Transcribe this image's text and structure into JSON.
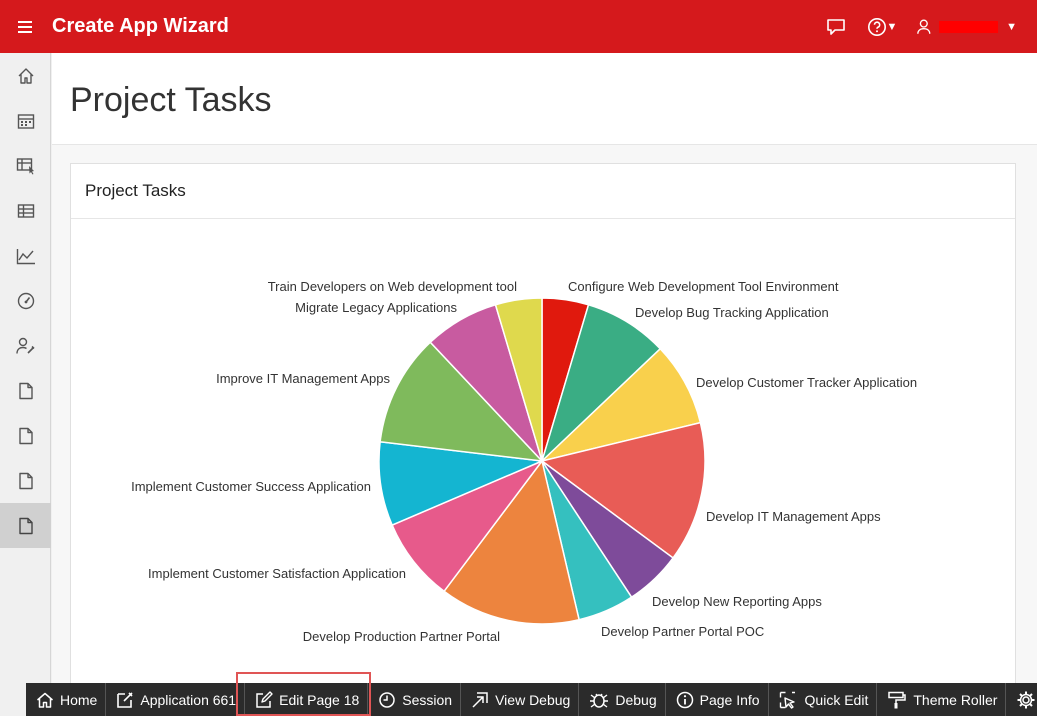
{
  "header": {
    "app_title": "Create App Wizard",
    "user_name": "",
    "icons": [
      "menu-icon",
      "chat-icon",
      "help-icon",
      "user-icon"
    ]
  },
  "sidebar": {
    "items": [
      {
        "icon": "home-icon"
      },
      {
        "icon": "calendar-icon"
      },
      {
        "icon": "interactive-grid-icon"
      },
      {
        "icon": "table-icon"
      },
      {
        "icon": "chart-icon"
      },
      {
        "icon": "dashboard-icon"
      },
      {
        "icon": "user-settings-icon"
      },
      {
        "icon": "page-icon"
      },
      {
        "icon": "page-icon"
      },
      {
        "icon": "page-icon"
      },
      {
        "icon": "page-icon",
        "active": true
      }
    ]
  },
  "page": {
    "title": "Project Tasks"
  },
  "region": {
    "title": "Project Tasks"
  },
  "chart_data": {
    "type": "pie",
    "categories": [
      "Configure Web Development Tool Environment",
      "Develop Bug Tracking Application",
      "Develop Customer Tracker Application",
      "Develop IT Management Apps",
      "Develop New Reporting Apps",
      "Develop Partner Portal POC",
      "Develop Production Partner Portal",
      "Implement Customer Satisfaction Application",
      "Implement Customer Success Application",
      "Improve IT Management Apps",
      "Migrate Legacy Applications",
      "Train Developers on Web development tool"
    ],
    "values": [
      4.6,
      8.3,
      8.3,
      13.9,
      5.6,
      5.6,
      13.9,
      8.3,
      8.3,
      11.1,
      7.4,
      4.6
    ],
    "colors": [
      "#e0190d",
      "#3aad84",
      "#f9d04c",
      "#e85c56",
      "#7e4b9a",
      "#35c0bf",
      "#ed843e",
      "#e75a8b",
      "#14b5d1",
      "#7fba5c",
      "#c85ba0",
      "#dfd94d"
    ]
  },
  "devbar": {
    "items": [
      {
        "label": "Home",
        "icon": "home-icon"
      },
      {
        "label": "Application 661",
        "icon": "edit-app-icon"
      },
      {
        "label": "Edit Page 18",
        "icon": "edit-page-icon"
      },
      {
        "label": "Session",
        "icon": "clock-icon"
      },
      {
        "label": "View Debug",
        "icon": "view-debug-icon"
      },
      {
        "label": "Debug",
        "icon": "bug-icon"
      },
      {
        "label": "Page Info",
        "icon": "info-icon"
      },
      {
        "label": "Quick Edit",
        "icon": "quick-edit-icon"
      },
      {
        "label": "Theme Roller",
        "icon": "paint-roller-icon"
      },
      {
        "label": "",
        "icon": "gear-icon"
      }
    ]
  }
}
